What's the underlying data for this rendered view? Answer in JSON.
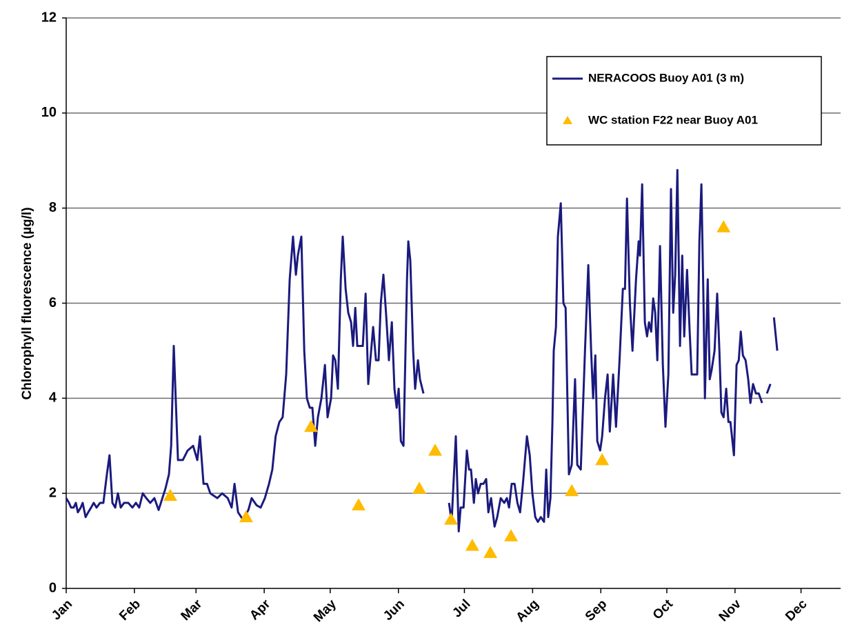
{
  "chart_data": {
    "type": "line",
    "y_label": "Chlorophyll fluorescence (µg/l)",
    "xlim": [
      0,
      352
    ],
    "xticks": [
      {
        "value": 0,
        "label": "Jan"
      },
      {
        "value": 31,
        "label": "Feb"
      },
      {
        "value": 59,
        "label": "Mar"
      },
      {
        "value": 90,
        "label": "Apr"
      },
      {
        "value": 120,
        "label": "May"
      },
      {
        "value": 151,
        "label": "Jun"
      },
      {
        "value": 181,
        "label": "Jul"
      },
      {
        "value": 212,
        "label": "Aug"
      },
      {
        "value": 243,
        "label": "Sep"
      },
      {
        "value": 273,
        "label": "Oct"
      },
      {
        "value": 304,
        "label": "Nov"
      },
      {
        "value": 334,
        "label": "Dec"
      }
    ],
    "ylim": [
      0,
      12
    ],
    "yticks": [
      0,
      2,
      4,
      6,
      8,
      10,
      12
    ],
    "grid": true,
    "legend": "upper right",
    "series": [
      {
        "name": "NERACOOS Buoy A01 (3 m)",
        "type": "line",
        "color": "#1b1a7e",
        "x": [
          0,
          1.3,
          2.2,
          3.4,
          4.4,
          5.3,
          6.6,
          7.5,
          8.8,
          10.0,
          11.3,
          12.5,
          13.8,
          15.4,
          16.9,
          18.5,
          19.7,
          21.0,
          22.3,
          23.5,
          24.8,
          26.3,
          28.2,
          30.1,
          31.7,
          33.2,
          34.8,
          36.4,
          38.2,
          40.1,
          42.0,
          45.1,
          46.7,
          47.7,
          48.9,
          50.8,
          53.0,
          55.2,
          57.7,
          59.6,
          60.8,
          62.4,
          64.0,
          65.5,
          68.7,
          70.9,
          73.4,
          75.2,
          76.5,
          78.1,
          80.3,
          82.8,
          84.3,
          86.5,
          88.4,
          90.3,
          92.2,
          93.7,
          95.2,
          96.9,
          98.4,
          100.0,
          101.6,
          103.1,
          104.4,
          105.3,
          106.9,
          108.2,
          109.4,
          110.7,
          111.9,
          113.2,
          114.4,
          116.0,
          117.6,
          118.8,
          120.4,
          121.3,
          122.3,
          123.5,
          124.8,
          125.7,
          127.0,
          128.2,
          129.5,
          130.4,
          131.4,
          132.3,
          133.6,
          134.8,
          136.1,
          137.3,
          138.6,
          139.5,
          140.8,
          142.0,
          143.0,
          144.2,
          145.5,
          146.7,
          148.0,
          149.2,
          150.2,
          151.1,
          152.1,
          153.3,
          154.9,
          155.5,
          156.4,
          157.7,
          158.6,
          159.9,
          160.8,
          162.4,
          168,
          174.0,
          175.2,
          177.1,
          178.4,
          179.3,
          180.6,
          182.1,
          183.1,
          184.0,
          185.3,
          186.2,
          187.2,
          188.4,
          189.7,
          190.9,
          191.9,
          193.1,
          194.7,
          195.9,
          197.5,
          199.1,
          200.3,
          201.3,
          202.5,
          203.8,
          205.1,
          206.3,
          207.6,
          209.4,
          210.7,
          211.9,
          213.2,
          214.4,
          215.7,
          217.2,
          218.2,
          219.1,
          220.1,
          221.0,
          221.6,
          222.6,
          223.5,
          224.8,
          226.0,
          227.0,
          228.5,
          229.8,
          231.3,
          232.3,
          233.9,
          235.8,
          237.3,
          238.6,
          239.5,
          240.5,
          241.4,
          242.7,
          243.6,
          244.9,
          246.1,
          247.1,
          248.6,
          249.9,
          251.5,
          253.0,
          254.0,
          254.9,
          256.2,
          257.4,
          259.0,
          260.2,
          260.8,
          261.8,
          263.0,
          264.0,
          264.9,
          265.9,
          266.8,
          267.7,
          268.7,
          269.9,
          271.2,
          272.4,
          273.7,
          274.9,
          275.9,
          276.8,
          277.8,
          279.0,
          280.0,
          280.9,
          282.2,
          283.4,
          284.3,
          285.6,
          286.8,
          287.8,
          288.7,
          289.7,
          290.3,
          291.6,
          292.5,
          293.4,
          294.7,
          295.9,
          296.9,
          297.8,
          298.8,
          300.0,
          301.0,
          301.9,
          303.5,
          304.7,
          305.7,
          306.6,
          307.6,
          308.8,
          310.0,
          311.0,
          312.2,
          313.5,
          314.8,
          316.3,
          317.5,
          318.5,
          320.1,
          321,
          321.7,
          323.2
        ],
        "values": [
          1.9,
          1.8,
          1.7,
          1.7,
          1.8,
          1.6,
          1.7,
          1.8,
          1.5,
          1.6,
          1.7,
          1.8,
          1.7,
          1.8,
          1.8,
          2.4,
          2.8,
          1.8,
          1.7,
          2.0,
          1.7,
          1.8,
          1.8,
          1.7,
          1.8,
          1.7,
          2.0,
          1.9,
          1.8,
          1.9,
          1.65,
          2.1,
          2.4,
          3.0,
          5.1,
          2.7,
          2.7,
          2.9,
          3.0,
          2.7,
          3.2,
          2.2,
          2.2,
          2.0,
          1.9,
          2.0,
          1.9,
          1.7,
          2.2,
          1.6,
          1.45,
          1.65,
          1.9,
          1.75,
          1.7,
          1.9,
          2.2,
          2.5,
          3.2,
          3.5,
          3.6,
          4.5,
          6.5,
          7.4,
          6.6,
          7.0,
          7.4,
          5.0,
          4.0,
          3.8,
          3.8,
          3.0,
          3.6,
          4.0,
          4.7,
          3.6,
          4.0,
          4.9,
          4.8,
          4.2,
          6.5,
          7.4,
          6.3,
          5.8,
          5.6,
          5.1,
          5.9,
          5.1,
          5.1,
          5.1,
          6.2,
          4.3,
          5.0,
          5.5,
          4.8,
          4.8,
          6.0,
          6.6,
          5.7,
          4.8,
          5.6,
          4.2,
          3.8,
          4.2,
          3.1,
          3.0,
          6.5,
          7.3,
          6.9,
          5.0,
          4.2,
          4.8,
          4.4,
          4.1,
          null,
          1.8,
          1.4,
          3.2,
          1.2,
          1.7,
          1.7,
          2.9,
          2.5,
          2.5,
          1.8,
          2.3,
          2.0,
          2.2,
          2.2,
          2.3,
          1.6,
          1.9,
          1.3,
          1.5,
          1.9,
          1.8,
          1.9,
          1.7,
          2.2,
          2.2,
          1.8,
          1.6,
          2.2,
          3.2,
          2.8,
          2.0,
          1.5,
          1.4,
          1.5,
          1.4,
          2.5,
          1.5,
          1.9,
          3.5,
          5.0,
          5.5,
          7.4,
          8.1,
          6.0,
          5.9,
          2.4,
          2.6,
          4.4,
          2.6,
          2.5,
          5.0,
          6.8,
          5.0,
          4.0,
          4.9,
          3.1,
          2.9,
          3.2,
          4.0,
          4.5,
          3.3,
          4.5,
          3.4,
          4.8,
          6.3,
          6.3,
          8.2,
          6.0,
          5.0,
          6.5,
          7.3,
          7.0,
          8.5,
          5.6,
          5.3,
          5.6,
          5.4,
          6.1,
          5.8,
          4.8,
          7.2,
          4.7,
          3.4,
          4.5,
          8.4,
          5.8,
          6.6,
          8.8,
          5.1,
          7.0,
          5.3,
          6.7,
          5.4,
          4.5,
          4.5,
          4.5,
          7.3,
          8.5,
          6.0,
          4.0,
          6.5,
          4.4,
          4.6,
          5.0,
          6.2,
          5.0,
          3.7,
          3.6,
          4.2,
          3.5,
          3.5,
          2.8,
          4.7,
          4.8,
          5.4,
          4.9,
          4.8,
          4.4,
          3.9,
          4.3,
          4.1,
          4.1,
          3.9,
          null,
          4.1,
          4.3,
          null,
          5.7,
          5.0
        ]
      },
      {
        "name": "WC station F22 near Buoy A01",
        "type": "scatter",
        "color": "#ffbb00",
        "x": [
          47.3,
          81.8,
          111.3,
          132.9,
          160.5,
          167.7,
          174.9,
          184.6,
          192.8,
          202.2,
          229.8,
          243.6,
          298.8
        ],
        "values": [
          1.95,
          1.5,
          3.4,
          1.75,
          2.1,
          2.9,
          1.45,
          0.9,
          0.75,
          1.1,
          2.05,
          2.7,
          7.6
        ]
      }
    ]
  }
}
